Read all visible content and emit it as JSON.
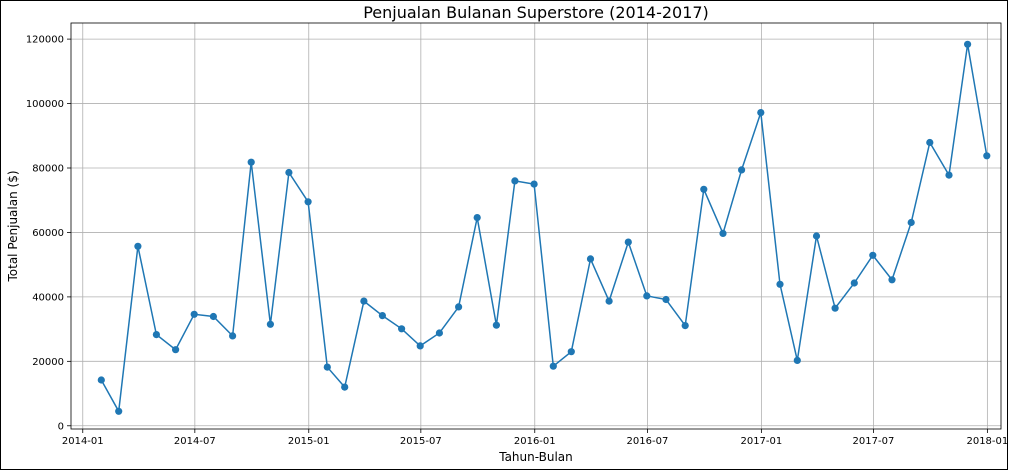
{
  "chart_data": {
    "type": "line",
    "title": "Penjualan Bulanan Superstore (2014-2017)",
    "xlabel": "Tahun-Bulan",
    "ylabel": "Total Penjualan ($)",
    "x_ticks": [
      "2014-01",
      "2014-07",
      "2015-01",
      "2015-07",
      "2016-01",
      "2016-07",
      "2017-01",
      "2017-07",
      "2018-01"
    ],
    "y_ticks": [
      0,
      20000,
      40000,
      60000,
      80000,
      100000,
      120000
    ],
    "ylim": [
      -1000,
      125000
    ],
    "grid": true,
    "marker": "circle",
    "color": "#1f77b4",
    "series": [
      {
        "x": [
          "2014-01-31",
          "2014-02-28",
          "2014-03-31",
          "2014-04-30",
          "2014-05-31",
          "2014-06-30",
          "2014-07-31",
          "2014-08-31",
          "2014-09-30",
          "2014-10-31",
          "2014-11-30",
          "2014-12-31",
          "2015-01-31",
          "2015-02-28",
          "2015-03-31",
          "2015-04-30",
          "2015-05-31",
          "2015-06-30",
          "2015-07-31",
          "2015-08-31",
          "2015-09-30",
          "2015-10-31",
          "2015-11-30",
          "2015-12-31",
          "2016-01-31",
          "2016-02-29",
          "2016-03-31",
          "2016-04-30",
          "2016-05-31",
          "2016-06-30",
          "2016-07-31",
          "2016-08-31",
          "2016-09-30",
          "2016-10-31",
          "2016-11-30",
          "2016-12-31",
          "2017-01-31",
          "2017-02-28",
          "2017-03-31",
          "2017-04-30",
          "2017-05-31",
          "2017-06-30",
          "2017-07-31",
          "2017-08-31",
          "2017-09-30",
          "2017-10-31",
          "2017-11-30",
          "2017-12-31"
        ],
        "y": [
          14200,
          4500,
          55700,
          28300,
          23600,
          34600,
          33900,
          27900,
          81800,
          31500,
          78600,
          69500,
          18200,
          12000,
          38700,
          34200,
          30100,
          24800,
          28800,
          36900,
          64600,
          31200,
          76000,
          75000,
          18500,
          23000,
          51800,
          38700,
          57000,
          40300,
          39200,
          31100,
          73400,
          59700,
          79400,
          97200,
          43900,
          20300,
          58900,
          36500,
          44300,
          52900,
          45300,
          63100,
          87900,
          77800,
          118400,
          83800
        ]
      }
    ]
  }
}
